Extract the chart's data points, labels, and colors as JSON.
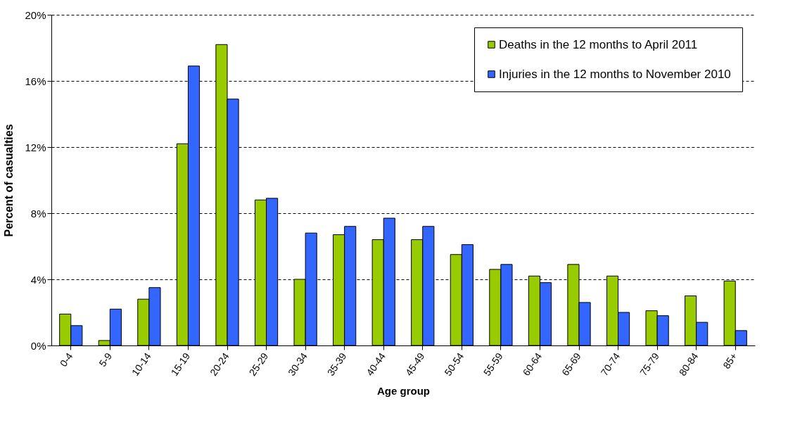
{
  "chart_data": {
    "type": "bar",
    "xlabel": "Age group",
    "ylabel": "Percent of casualties",
    "categories": [
      "0-4",
      "5-9",
      "10-14",
      "15-19",
      "20-24",
      "25-29",
      "30-34",
      "35-39",
      "40-44",
      "45-49",
      "50-54",
      "55-59",
      "60-64",
      "65-69",
      "70-74",
      "75-79",
      "80-84",
      "85+"
    ],
    "series": [
      {
        "name": "Deaths in the 12 months to April 2011",
        "color": "#99cc00",
        "values": [
          1.9,
          0.3,
          2.8,
          12.2,
          18.2,
          8.8,
          4.0,
          6.7,
          6.4,
          6.4,
          5.5,
          4.6,
          4.2,
          4.9,
          4.2,
          2.1,
          3.0,
          3.9
        ]
      },
      {
        "name": "Injuries in the 12 months to November 2010",
        "color": "#3366ff",
        "values": [
          1.2,
          2.2,
          3.5,
          16.9,
          14.9,
          8.9,
          6.8,
          7.2,
          7.7,
          7.2,
          6.1,
          4.9,
          3.8,
          2.6,
          2.0,
          1.8,
          1.4,
          0.9
        ]
      }
    ],
    "ylim": [
      0,
      20
    ],
    "yticks": [
      {
        "value": 0,
        "label": "0%"
      },
      {
        "value": 4,
        "label": "4%"
      },
      {
        "value": 8,
        "label": "8%"
      },
      {
        "value": 12,
        "label": "12%"
      },
      {
        "value": 16,
        "label": "16%"
      },
      {
        "value": 20,
        "label": "20%"
      }
    ],
    "grid": "y",
    "legend": "top right"
  }
}
